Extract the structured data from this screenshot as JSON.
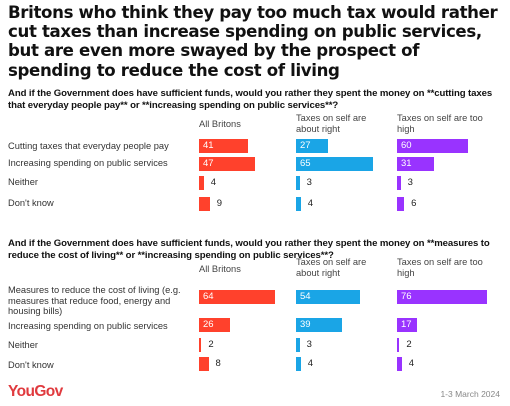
{
  "title": "Britons who think they pay too much tax would rather cut taxes than increase spending on public services, but are even more swayed by the prospect of spending to reduce the cost of living",
  "footer": {
    "brand": "YouGov",
    "date": "1-3 March 2024"
  },
  "colors": {
    "all": "#ff412c",
    "about_right": "#1aa5e6",
    "too_high": "#9933ff",
    "brand": "#e03a3e"
  },
  "chart_data": [
    {
      "type": "bar",
      "title": "And if the Government does have sufficient funds, would you rather they spent the money on **cutting taxes that everyday people pay** or **increasing spending on public services**?",
      "series_names": [
        "All Britons",
        "Taxes on self are about right",
        "Taxes on self are too high"
      ],
      "categories": [
        "Cutting taxes that everyday people pay",
        "Increasing spending on public services",
        "Neither",
        "Don't know"
      ],
      "series": [
        {
          "name": "All Britons",
          "values": [
            41,
            47,
            4,
            9
          ]
        },
        {
          "name": "Taxes on self are about right",
          "values": [
            27,
            65,
            3,
            4
          ]
        },
        {
          "name": "Taxes on self are too high",
          "values": [
            60,
            31,
            3,
            6
          ]
        }
      ]
    },
    {
      "type": "bar",
      "title": "And if the Government does have sufficient funds, would you rather they spent the money on **measures to reduce the cost of living** or **increasing spending on public services**?",
      "series_names": [
        "All Britons",
        "Taxes on self are about right",
        "Taxes on self are too high"
      ],
      "categories": [
        "Measures to reduce the cost of living (e.g. measures that reduce food, energy and housing bills)",
        "Increasing spending on public services",
        "Neither",
        "Don't know"
      ],
      "series": [
        {
          "name": "All Britons",
          "values": [
            64,
            26,
            2,
            8
          ]
        },
        {
          "name": "Taxes on self are about right",
          "values": [
            54,
            39,
            3,
            4
          ]
        },
        {
          "name": "Taxes on self are too high",
          "values": [
            76,
            17,
            2,
            4
          ]
        }
      ]
    }
  ]
}
